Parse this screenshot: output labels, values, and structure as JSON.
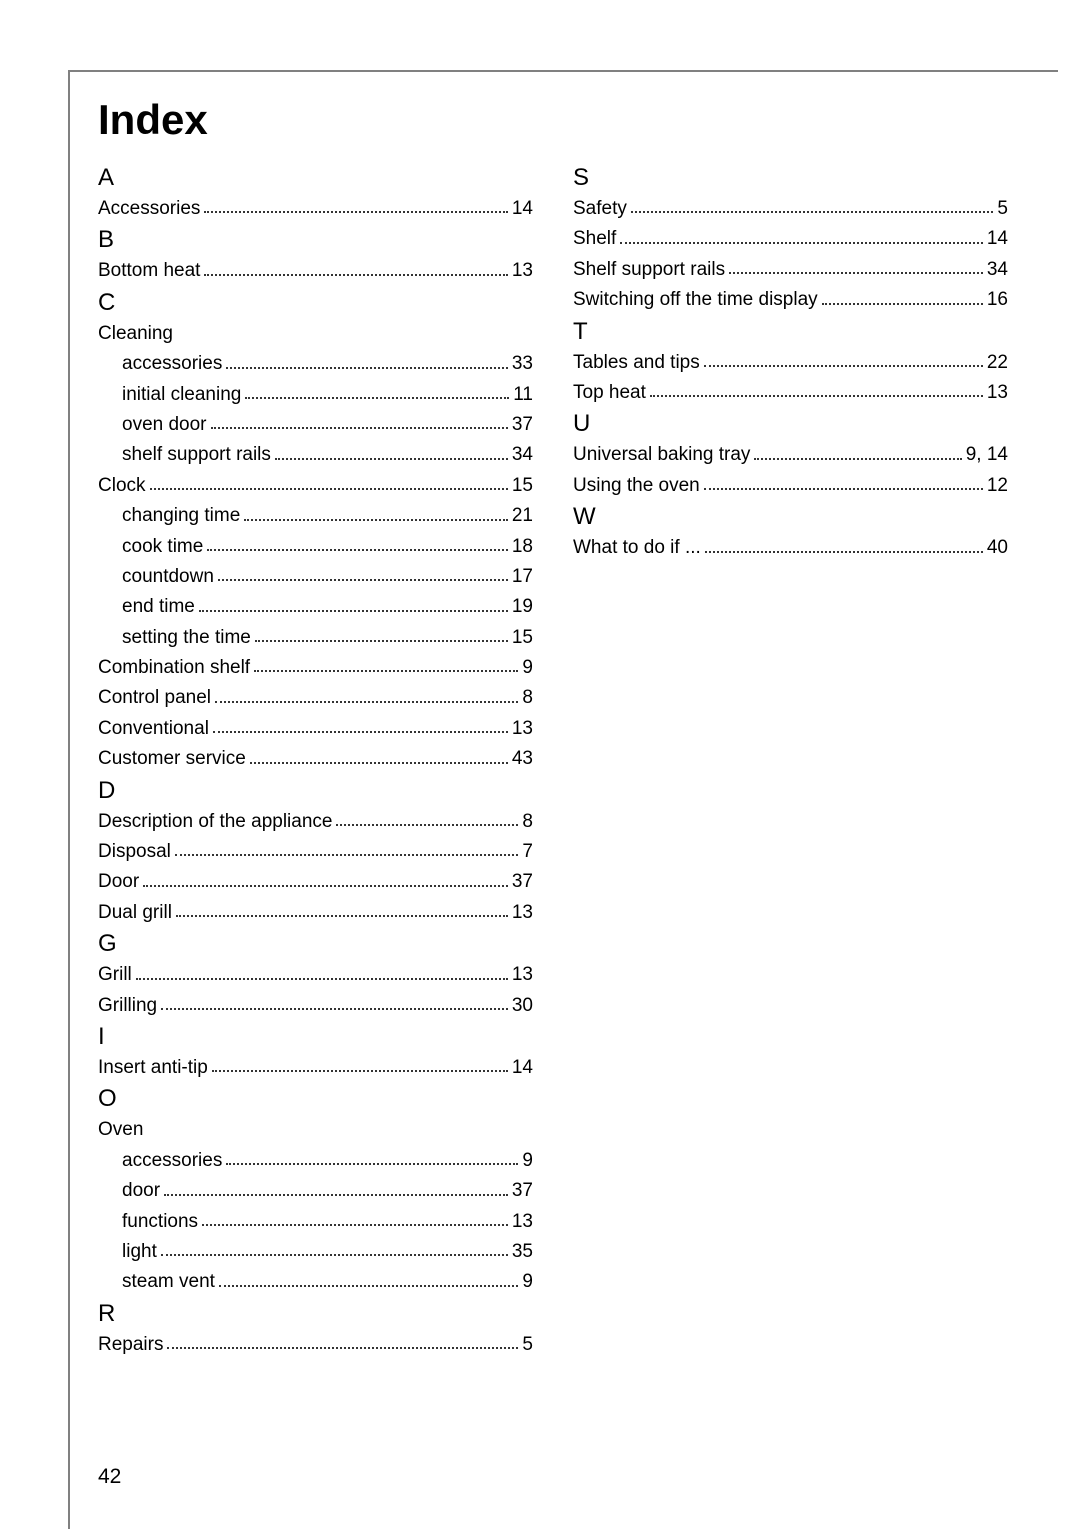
{
  "title": "Index",
  "page_number": "42",
  "columns": [
    {
      "sections": [
        {
          "letter": "A",
          "entries": [
            {
              "label": "Accessories",
              "page": "14"
            }
          ]
        },
        {
          "letter": "B",
          "entries": [
            {
              "label": "Bottom heat",
              "page": "13"
            }
          ]
        },
        {
          "letter": "C",
          "entries": [
            {
              "label": "Cleaning",
              "page": "",
              "no_leader": true
            },
            {
              "label": "accessories",
              "page": "33",
              "sub": true
            },
            {
              "label": "initial cleaning",
              "page": "11",
              "sub": true
            },
            {
              "label": "oven door",
              "page": "37",
              "sub": true
            },
            {
              "label": "shelf support rails",
              "page": "34",
              "sub": true
            },
            {
              "label": "Clock",
              "page": "15"
            },
            {
              "label": "changing time",
              "page": "21",
              "sub": true
            },
            {
              "label": "cook time",
              "page": "18",
              "sub": true
            },
            {
              "label": "countdown",
              "page": "17",
              "sub": true
            },
            {
              "label": "end time",
              "page": "19",
              "sub": true
            },
            {
              "label": "setting the time",
              "page": "15",
              "sub": true
            },
            {
              "label": "Combination shelf",
              "page": "9"
            },
            {
              "label": "Control panel",
              "page": "8"
            },
            {
              "label": "Conventional",
              "page": "13"
            },
            {
              "label": "Customer service",
              "page": "43"
            }
          ]
        },
        {
          "letter": "D",
          "entries": [
            {
              "label": "Description of the appliance",
              "page": "8"
            },
            {
              "label": "Disposal",
              "page": "7"
            },
            {
              "label": "Door",
              "page": "37"
            },
            {
              "label": "Dual grill",
              "page": "13"
            }
          ]
        },
        {
          "letter": "G",
          "entries": [
            {
              "label": "Grill",
              "page": "13"
            },
            {
              "label": "Grilling",
              "page": "30"
            }
          ]
        },
        {
          "letter": "I",
          "entries": [
            {
              "label": "Insert anti-tip",
              "page": "14"
            }
          ]
        },
        {
          "letter": "O",
          "entries": [
            {
              "label": "Oven",
              "page": "",
              "no_leader": true
            },
            {
              "label": "accessories",
              "page": "9",
              "sub": true
            },
            {
              "label": "door",
              "page": "37",
              "sub": true
            },
            {
              "label": "functions",
              "page": "13",
              "sub": true
            },
            {
              "label": "light",
              "page": "35",
              "sub": true
            },
            {
              "label": "steam vent",
              "page": "9",
              "sub": true
            }
          ]
        },
        {
          "letter": "R",
          "entries": [
            {
              "label": "Repairs",
              "page": "5"
            }
          ]
        }
      ]
    },
    {
      "sections": [
        {
          "letter": "S",
          "entries": [
            {
              "label": "Safety",
              "page": "5"
            },
            {
              "label": "Shelf",
              "page": "14"
            },
            {
              "label": "Shelf support rails",
              "page": "34"
            },
            {
              "label": "Switching off the time display",
              "page": "16"
            }
          ]
        },
        {
          "letter": "T",
          "entries": [
            {
              "label": "Tables and tips",
              "page": "22"
            },
            {
              "label": "Top heat",
              "page": "13"
            }
          ]
        },
        {
          "letter": "U",
          "entries": [
            {
              "label": "Universal baking tray",
              "page": "9, 14"
            },
            {
              "label": "Using the oven",
              "page": "12"
            }
          ]
        },
        {
          "letter": "W",
          "entries": [
            {
              "label": "What to do if ...",
              "page": "40"
            }
          ]
        }
      ]
    }
  ]
}
